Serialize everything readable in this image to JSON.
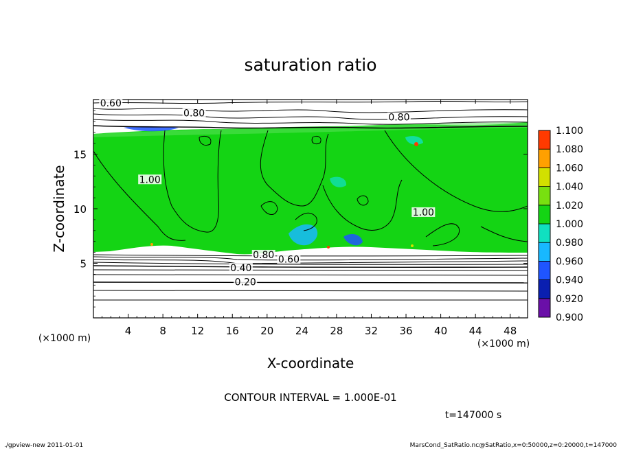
{
  "chart_data": {
    "type": "heatmap",
    "title": "saturation ratio",
    "xlabel": "X-coordinate",
    "ylabel": "Z-coordinate",
    "x_unit_label": "(×1000 m)",
    "y_unit_label": "(×1000 m)",
    "xlim": [
      0,
      50
    ],
    "ylim": [
      0,
      20
    ],
    "x_ticks": [
      4,
      8,
      12,
      16,
      20,
      24,
      28,
      32,
      36,
      40,
      44,
      48
    ],
    "y_ticks": [
      5,
      10,
      15
    ],
    "contour_interval_text": "CONTOUR INTERVAL = 1.000E-01",
    "time_text": "t=147000 s",
    "contour_labels": [
      {
        "text": "0.60",
        "x": 2.0,
        "z": 19.5
      },
      {
        "text": "0.80",
        "x": 11.6,
        "z": 18.6
      },
      {
        "text": "0.80",
        "x": 35.2,
        "z": 18.2
      },
      {
        "text": "1.00",
        "x": 6.5,
        "z": 12.5
      },
      {
        "text": "1.00",
        "x": 38.0,
        "z": 9.5
      },
      {
        "text": "0.80",
        "x": 19.6,
        "z": 5.6
      },
      {
        "text": "0.60",
        "x": 22.5,
        "z": 5.2
      },
      {
        "text": "0.40",
        "x": 17.0,
        "z": 4.4
      },
      {
        "text": "0.20",
        "x": 17.5,
        "z": 3.1
      }
    ],
    "colorbar": {
      "levels": [
        "0.900",
        "0.920",
        "0.940",
        "0.960",
        "0.980",
        "1.000",
        "1.020",
        "1.040",
        "1.060",
        "1.080",
        "1.100"
      ],
      "colors": [
        "#6a0fa8",
        "#0a1fb0",
        "#1f55ff",
        "#18b8ff",
        "#10e0c0",
        "#14d414",
        "#78e010",
        "#d2e000",
        "#ffa000",
        "#ff3a00",
        "#ff8080"
      ]
    }
  },
  "footer": {
    "left": "./gpview-new 2011-01-01",
    "right": "MarsCond_SatRatio.nc@SatRatio,x=0:50000,z=0:20000,t=147000"
  }
}
